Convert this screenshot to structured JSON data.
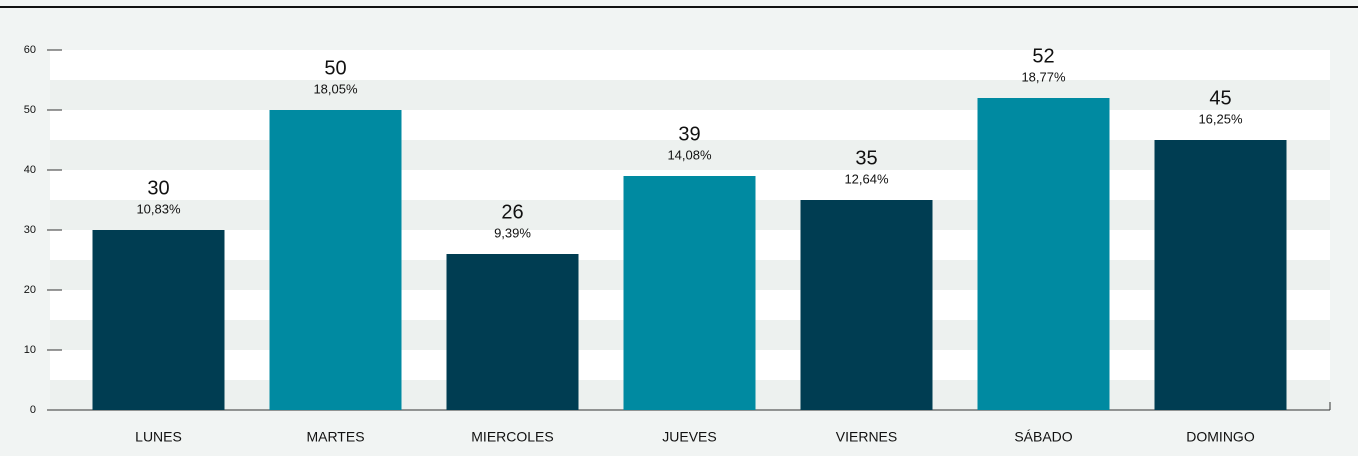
{
  "chart_data": {
    "type": "bar",
    "categories": [
      "LUNES",
      "MARTES",
      "MIERCOLES",
      "JUEVES",
      "VIERNES",
      "SÁBADO",
      "DOMINGO"
    ],
    "values": [
      30,
      50,
      26,
      39,
      35,
      52,
      45
    ],
    "percent_labels": [
      "10,83%",
      "18,05%",
      "9,39%",
      "14,08%",
      "12,64%",
      "18,77%",
      "16,25%"
    ],
    "colors": [
      "#003d52",
      "#008aa1",
      "#003d52",
      "#008aa1",
      "#003d52",
      "#008aa1",
      "#003d52"
    ],
    "ylim": [
      0,
      60
    ],
    "yticks": [
      0,
      10,
      20,
      30,
      40,
      50,
      60
    ]
  }
}
